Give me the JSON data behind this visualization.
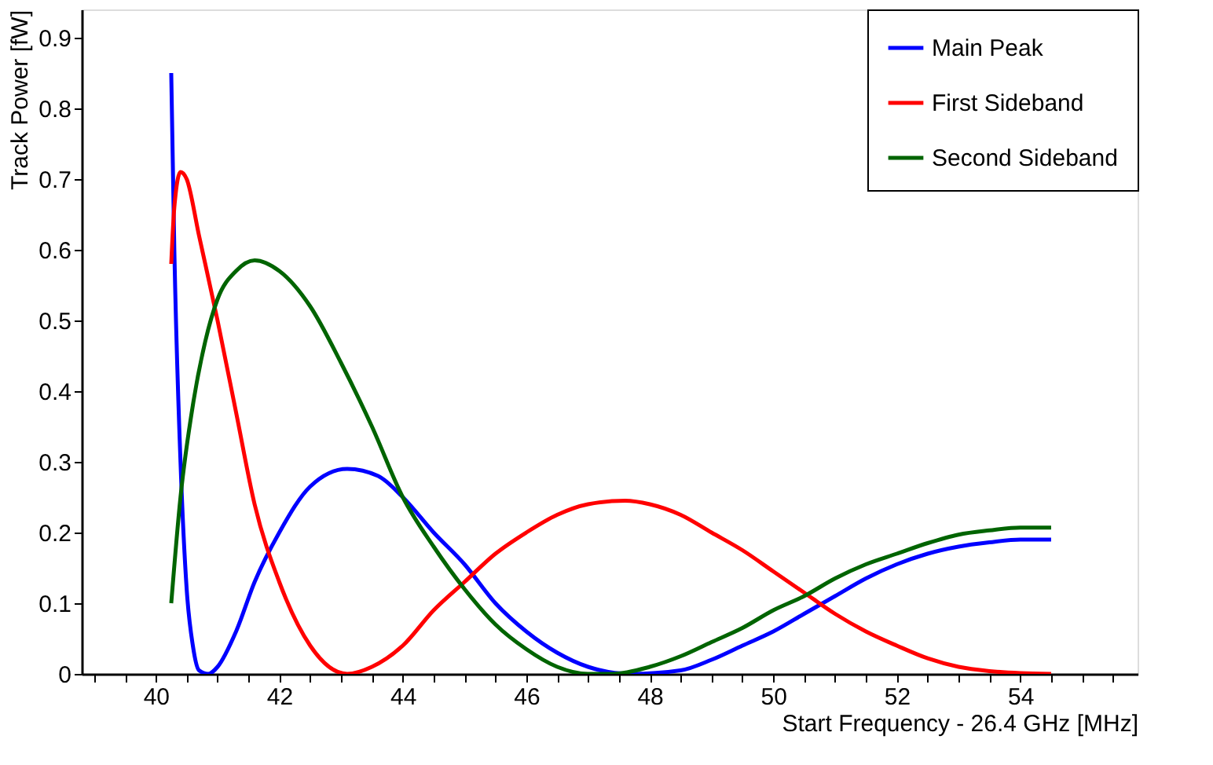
{
  "chart_data": {
    "type": "line",
    "xlabel": "Start Frequency - 26.4 GHz [MHz]",
    "ylabel": "Track Power [fW]",
    "xlim": [
      38.8,
      55.9
    ],
    "ylim": [
      0,
      0.94
    ],
    "xticks": [
      {
        "value": 39,
        "label": null
      },
      {
        "value": 39.5,
        "label": null
      },
      40,
      {
        "value": 40.5,
        "label": null
      },
      {
        "value": 41,
        "label": null
      },
      {
        "value": 41.5,
        "label": null
      },
      42,
      {
        "value": 42.5,
        "label": null
      },
      {
        "value": 43,
        "label": null
      },
      {
        "value": 43.5,
        "label": null
      },
      44,
      {
        "value": 44.5,
        "label": null
      },
      {
        "value": 45,
        "label": null
      },
      {
        "value": 45.5,
        "label": null
      },
      46,
      {
        "value": 46.5,
        "label": null
      },
      {
        "value": 47,
        "label": null
      },
      {
        "value": 47.5,
        "label": null
      },
      48,
      {
        "value": 48.5,
        "label": null
      },
      {
        "value": 49,
        "label": null
      },
      {
        "value": 49.5,
        "label": null
      },
      50,
      {
        "value": 50.5,
        "label": null
      },
      {
        "value": 51,
        "label": null
      },
      {
        "value": 51.5,
        "label": null
      },
      52,
      {
        "value": 52.5,
        "label": null
      },
      {
        "value": 53,
        "label": null
      },
      {
        "value": 53.5,
        "label": null
      },
      54,
      {
        "value": 54.5,
        "label": null
      },
      {
        "value": 55,
        "label": null
      },
      {
        "value": 55.5,
        "label": null
      }
    ],
    "yticks": [
      0,
      0.1,
      0.2,
      0.3,
      0.4,
      0.5,
      0.6,
      0.7,
      0.8,
      0.9
    ],
    "grid": false,
    "legend": "top right",
    "marker": "none",
    "line_style": "solid",
    "series": [
      {
        "name": "Main Peak",
        "color": "#0000ff",
        "x": [
          40.25,
          40.3,
          40.4,
          40.5,
          40.6,
          40.7,
          40.85,
          41.0,
          41.3,
          41.6,
          42.0,
          42.5,
          43.1,
          43.6,
          44,
          44.5,
          45,
          45.5,
          46,
          46.5,
          47,
          47.7,
          48.5,
          49,
          49.5,
          50,
          50.5,
          51,
          51.5,
          52,
          52.5,
          53,
          53.5,
          54,
          54.5
        ],
        "values": [
          0.85,
          0.6,
          0.3,
          0.12,
          0.04,
          0.005,
          0,
          0.01,
          0.06,
          0.13,
          0.2,
          0.265,
          0.29,
          0.28,
          0.25,
          0.2,
          0.155,
          0.1,
          0.06,
          0.03,
          0.01,
          0,
          0.005,
          0.02,
          0.04,
          0.06,
          0.085,
          0.11,
          0.135,
          0.155,
          0.17,
          0.18,
          0.186,
          0.19,
          0.19
        ]
      },
      {
        "name": "First Sideband",
        "color": "#ff0000",
        "x": [
          40.25,
          40.3,
          40.4,
          40.5,
          40.7,
          41,
          41.3,
          41.6,
          42,
          42.5,
          43.1,
          43.5,
          44,
          44.5,
          45,
          45.5,
          46,
          46.5,
          47,
          47.6,
          48,
          48.5,
          49,
          49.5,
          50,
          50.5,
          51,
          51.5,
          52,
          52.5,
          53,
          53.5,
          54,
          54.5
        ],
        "values": [
          0.58,
          0.66,
          0.71,
          0.7,
          0.62,
          0.5,
          0.37,
          0.24,
          0.13,
          0.04,
          0,
          0.01,
          0.04,
          0.09,
          0.13,
          0.17,
          0.2,
          0.225,
          0.24,
          0.245,
          0.24,
          0.225,
          0.2,
          0.175,
          0.145,
          0.115,
          0.085,
          0.06,
          0.04,
          0.022,
          0.01,
          0.004,
          0.001,
          0
        ]
      },
      {
        "name": "Second Sideband",
        "color": "#006400",
        "x": [
          40.25,
          40.4,
          40.6,
          40.8,
          41,
          41.3,
          41.6,
          42,
          42.5,
          43,
          43.5,
          44,
          44.5,
          45,
          45.5,
          46,
          46.5,
          47,
          47.4,
          48,
          48.5,
          49,
          49.5,
          50,
          50.5,
          51,
          51.5,
          52,
          52.5,
          53,
          53.5,
          54,
          54.5
        ],
        "values": [
          0.1,
          0.25,
          0.38,
          0.47,
          0.53,
          0.57,
          0.585,
          0.57,
          0.52,
          0.44,
          0.35,
          0.25,
          0.18,
          0.12,
          0.07,
          0.035,
          0.01,
          0,
          0,
          0.01,
          0.025,
          0.045,
          0.065,
          0.09,
          0.11,
          0.135,
          0.155,
          0.17,
          0.185,
          0.197,
          0.203,
          0.207,
          0.207
        ]
      }
    ]
  }
}
